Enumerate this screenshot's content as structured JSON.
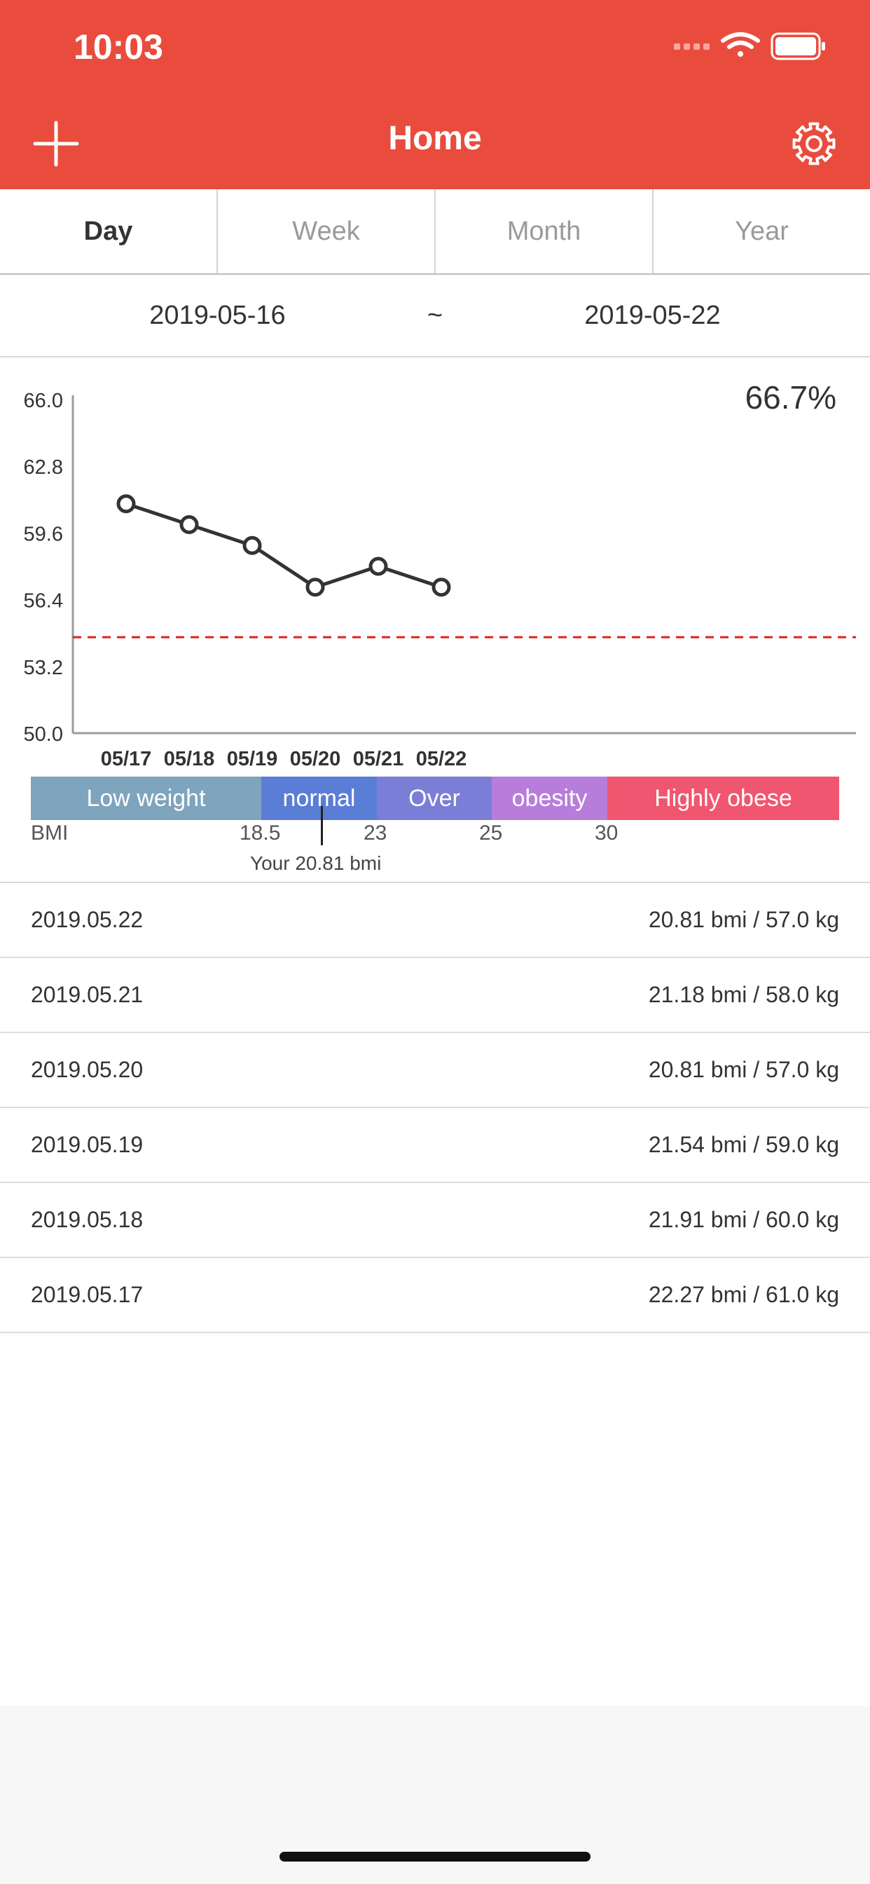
{
  "status": {
    "time": "10:03"
  },
  "header": {
    "title": "Home",
    "add_icon": "plus-icon",
    "settings_icon": "gear-icon"
  },
  "tabs": [
    {
      "label": "Day",
      "active": true
    },
    {
      "label": "Week",
      "active": false
    },
    {
      "label": "Month",
      "active": false
    },
    {
      "label": "Year",
      "active": false
    }
  ],
  "range": {
    "start": "2019-05-16",
    "separator": "~",
    "end": "2019-05-22"
  },
  "chart_data": {
    "type": "line",
    "x": [
      "05/17",
      "05/18",
      "05/19",
      "05/20",
      "05/21",
      "05/22"
    ],
    "yticks": [
      "66.0",
      "62.8",
      "59.6",
      "56.4",
      "53.2",
      "50.0"
    ],
    "ylim": [
      50.0,
      66.0
    ],
    "values": [
      61.0,
      60.0,
      59.0,
      57.0,
      58.0,
      57.0
    ],
    "target_line": 54.6,
    "percent_label": "66.7%",
    "line_color": "#333333",
    "target_color": "#e02020"
  },
  "bmi": {
    "segments": [
      {
        "label": "Low weight",
        "color": "#7fa4bd"
      },
      {
        "label": "normal",
        "color": "#5a7dd6"
      },
      {
        "label": "Over",
        "color": "#7b7ed6"
      },
      {
        "label": "obesity",
        "color": "#b87ddb"
      },
      {
        "label": "Highly obese",
        "color": "#f0566f"
      }
    ],
    "axis_label": "BMI",
    "thresholds": [
      "18.5",
      "23",
      "25",
      "30"
    ],
    "your_value": 20.81,
    "your_label": "Your 20.81 bmi"
  },
  "records": [
    {
      "date": "2019.05.22",
      "value": "20.81 bmi / 57.0 kg"
    },
    {
      "date": "2019.05.21",
      "value": "21.18 bmi / 58.0 kg"
    },
    {
      "date": "2019.05.20",
      "value": "20.81 bmi / 57.0 kg"
    },
    {
      "date": "2019.05.19",
      "value": "21.54 bmi / 59.0 kg"
    },
    {
      "date": "2019.05.18",
      "value": "21.91 bmi / 60.0 kg"
    },
    {
      "date": "2019.05.17",
      "value": "22.27 bmi / 61.0 kg"
    }
  ]
}
